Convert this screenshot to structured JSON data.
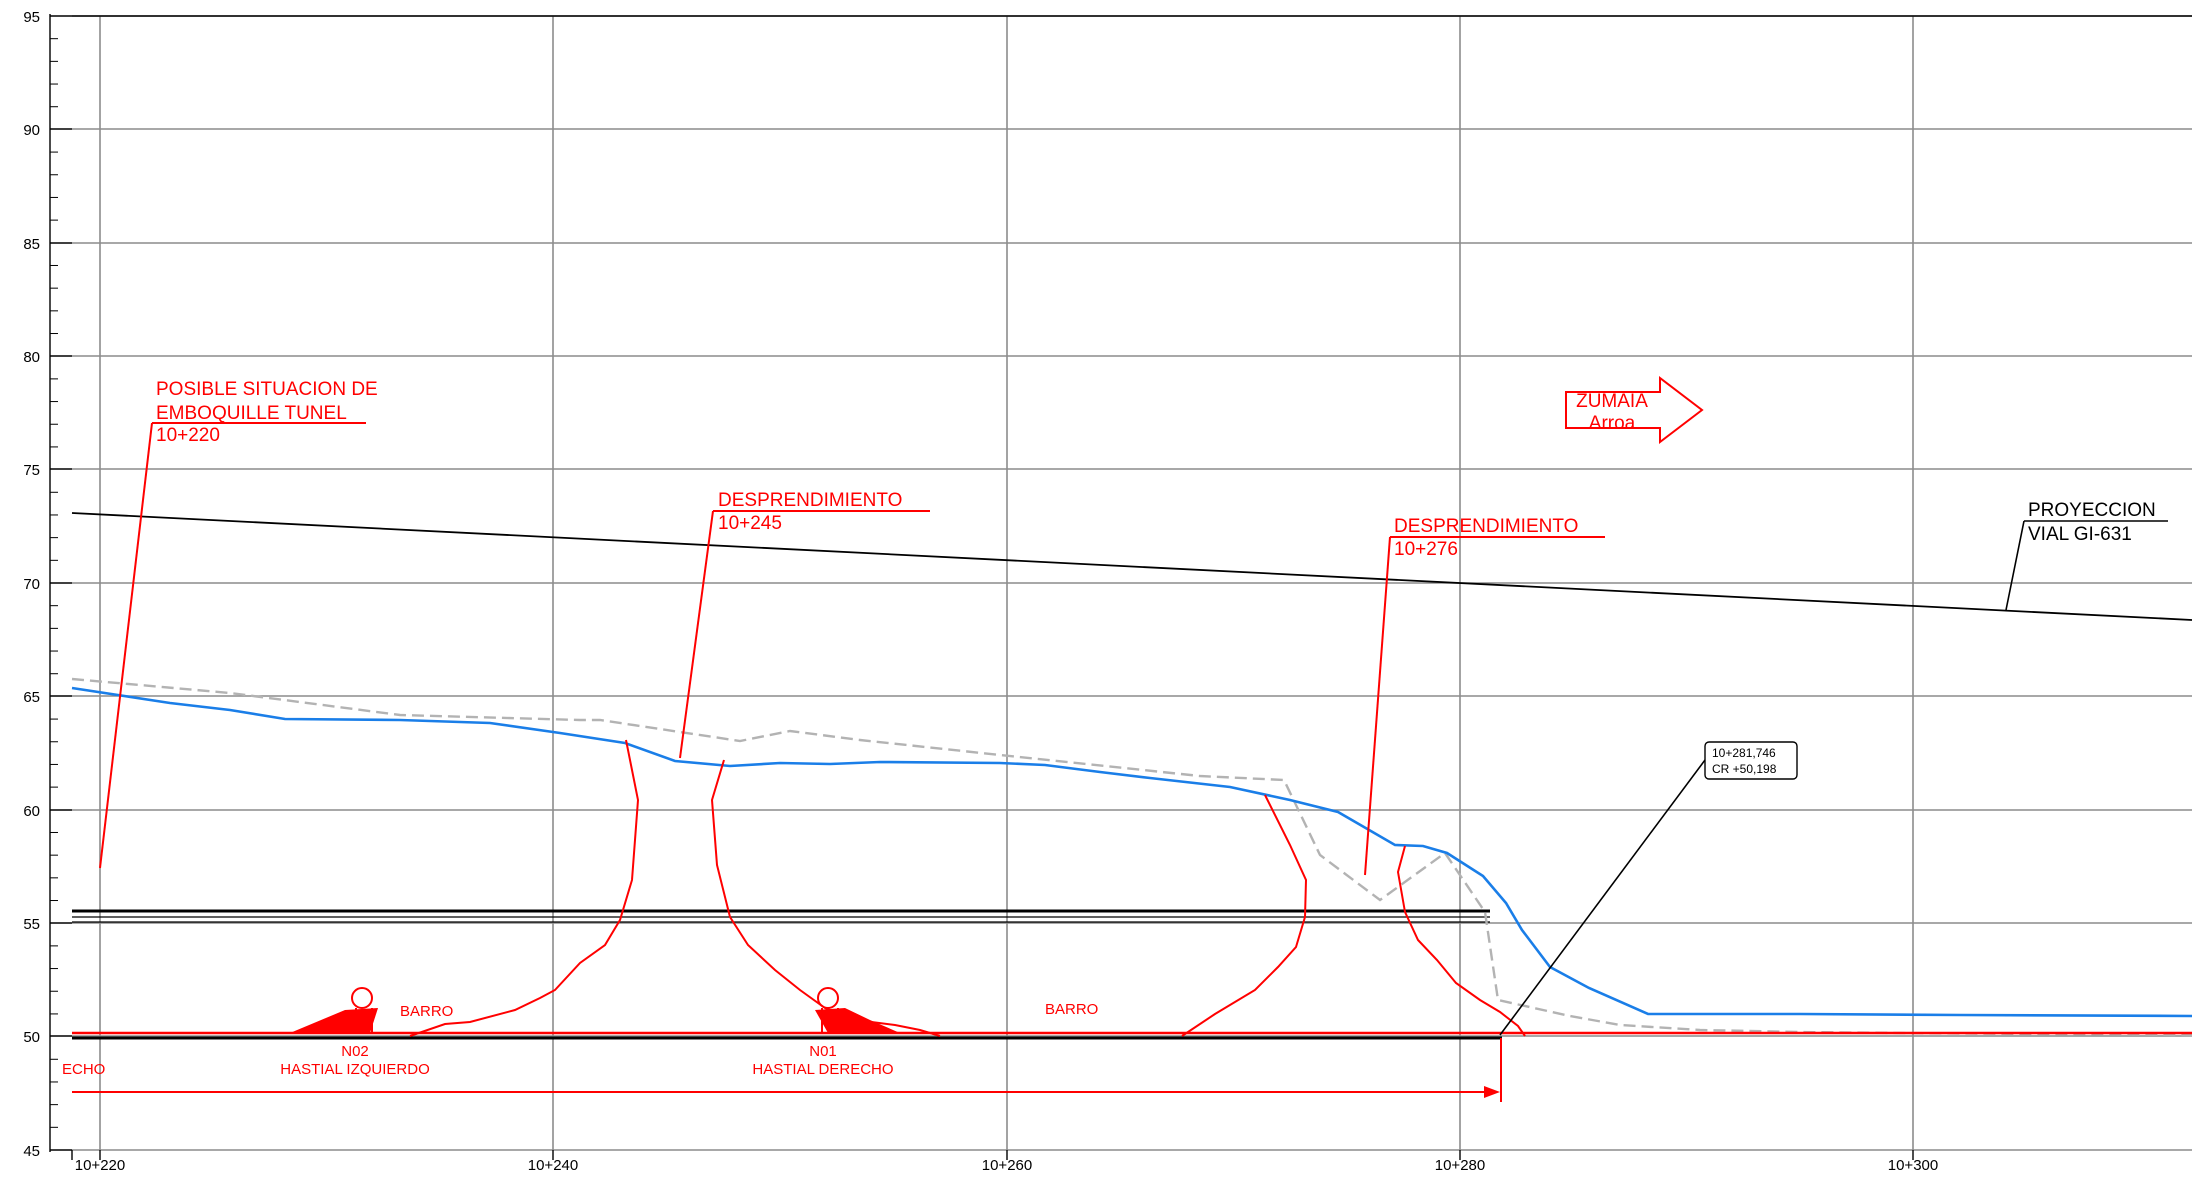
{
  "axes": {
    "y_ticks": [
      "95",
      "90",
      "85",
      "80",
      "75",
      "70",
      "65",
      "60",
      "55",
      "50",
      "45"
    ],
    "x_ticks": [
      "10+220",
      "10+240",
      "10+260",
      "10+280",
      "10+300"
    ]
  },
  "annotations": {
    "tunnel_line1": "POSIBLE SITUACION DE",
    "tunnel_line2": "EMBOQUILLE TUNEL",
    "tunnel_pk": "10+220",
    "desp1_title": "DESPRENDIMIENTO",
    "desp1_pk": "10+245",
    "desp2_title": "DESPRENDIMIENTO",
    "desp2_pk": "10+276",
    "direction_line1": "ZUMAIA",
    "direction_line2": "Arroa",
    "proyeccion_line1": "PROYECCION",
    "proyeccion_line2": "VIAL GI-631",
    "callout_line1": "10+281,746",
    "callout_line2": "CR +50,198",
    "barro_left": "BARRO",
    "barro_right": "BARRO",
    "n02_id": "N02",
    "n02_label": "HASTIAL IZQUIERDO",
    "n01_id": "N01",
    "n01_label": "HASTIAL DERECHO",
    "left_cut_label": "ECHO"
  },
  "colors": {
    "terrain": "#1a7ee8",
    "terrain_previous": "#b3b3b3",
    "annotation": "#ff0000",
    "grid": "#8c8c8c",
    "road": "#000000"
  }
}
